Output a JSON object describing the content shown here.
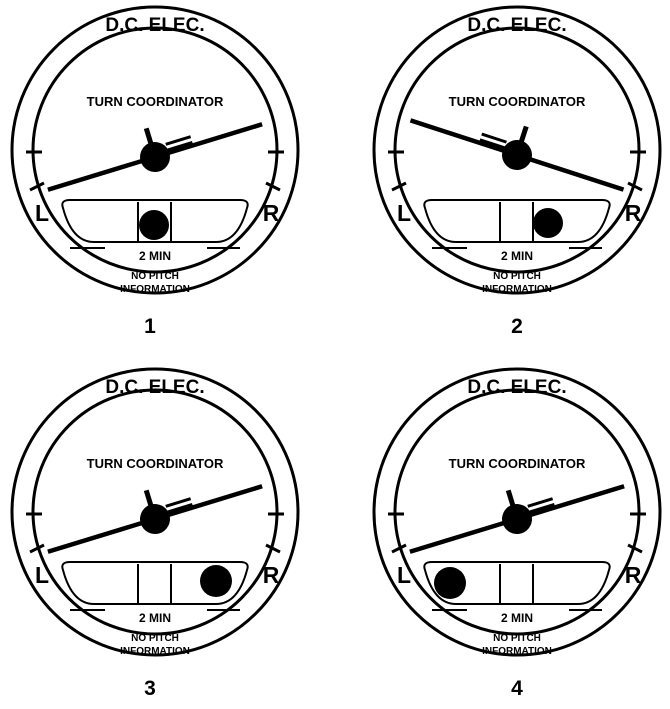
{
  "instruments": [
    {
      "number_label": "1",
      "top_label": "D.C. ELEC.",
      "title": "TURN COORDINATOR",
      "left_mark": "L",
      "right_mark": "R",
      "rate_label": "2 MIN",
      "info_line1": "NO PITCH",
      "info_line2": "INFORMATION",
      "bank": "left",
      "ball_position": "center"
    },
    {
      "number_label": "2",
      "top_label": "D.C. ELEC.",
      "title": "TURN COORDINATOR",
      "left_mark": "L",
      "right_mark": "R",
      "rate_label": "2 MIN",
      "info_line1": "NO PITCH",
      "info_line2": "INFORMATION",
      "bank": "right",
      "ball_position": "right"
    },
    {
      "number_label": "3",
      "top_label": "D.C. ELEC.",
      "title": "TURN COORDINATOR",
      "left_mark": "L",
      "right_mark": "R",
      "rate_label": "2 MIN",
      "info_line1": "NO PITCH",
      "info_line2": "INFORMATION",
      "bank": "left",
      "ball_position": "right"
    },
    {
      "number_label": "4",
      "top_label": "D.C. ELEC.",
      "title": "TURN COORDINATOR",
      "left_mark": "L",
      "right_mark": "R",
      "rate_label": "2 MIN",
      "info_line1": "NO PITCH",
      "info_line2": "INFORMATION",
      "bank": "left",
      "ball_position": "left"
    }
  ]
}
